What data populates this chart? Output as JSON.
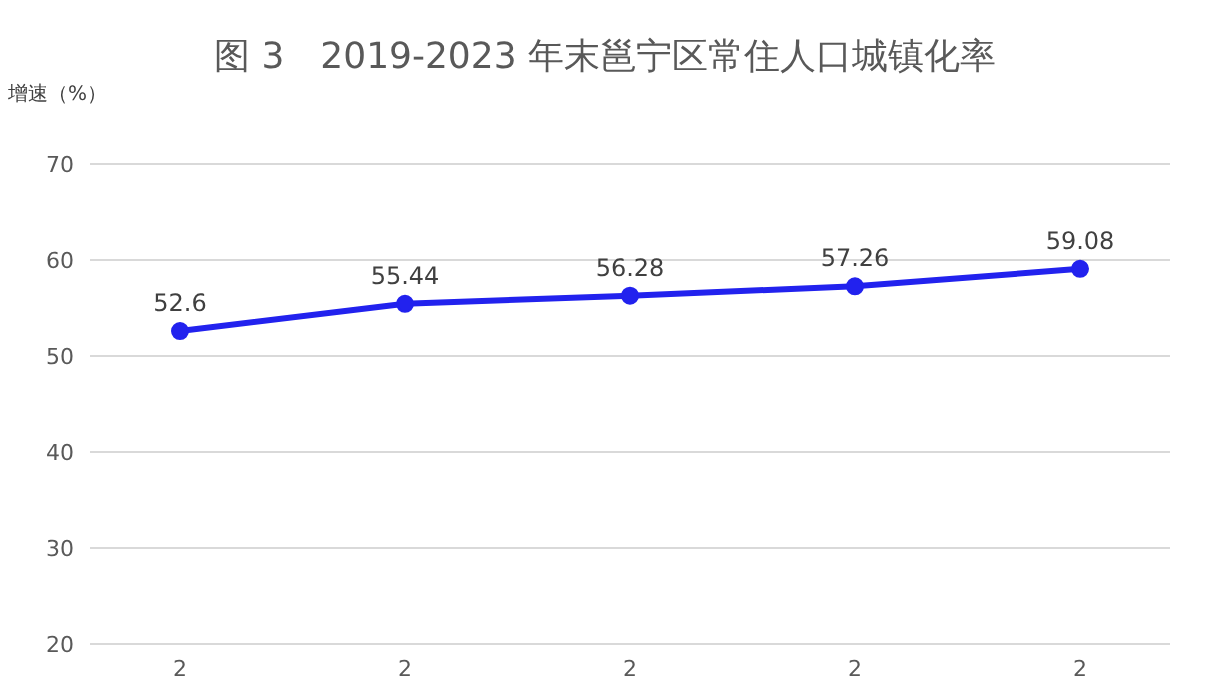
{
  "chart_data": {
    "type": "line",
    "title": "图 3　2019-2023 年末邕宁区常住人口城镇化率",
    "ylabel": "增速（%）",
    "categories": [
      "2",
      "2",
      "2",
      "2",
      "2"
    ],
    "series": [
      {
        "color": "#2222ee",
        "values": [
          52.6,
          55.44,
          56.28,
          57.26,
          59.08
        ]
      }
    ],
    "ylim": [
      20,
      70
    ],
    "yticks": [
      20,
      30,
      40,
      50,
      60,
      70
    ],
    "grid": "y",
    "legend": false,
    "marker": "circle",
    "line_style": "solid",
    "data_labels": true
  }
}
